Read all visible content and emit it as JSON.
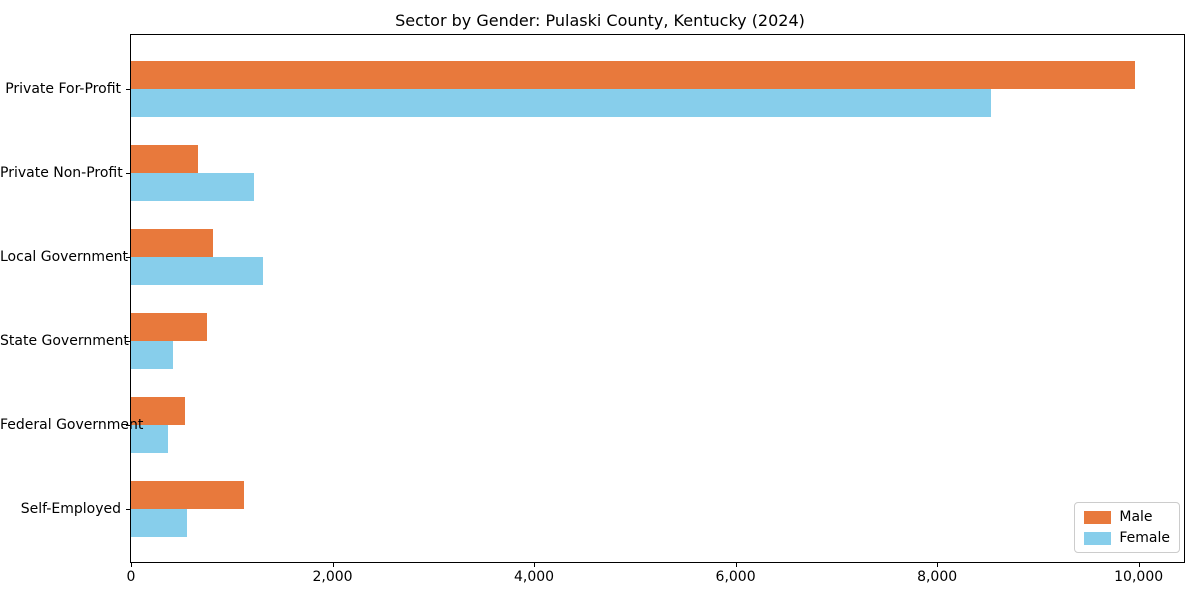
{
  "chart_data": {
    "type": "bar",
    "orientation": "horizontal",
    "title": "Sector by Gender: Pulaski County, Kentucky (2024)",
    "categories": [
      "Private For-Profit",
      "Private Non-Profit",
      "Local Government",
      "State Government",
      "Federal Government",
      "Self-Employed"
    ],
    "series": [
      {
        "name": "Male",
        "color": "#E8793C",
        "values": [
          9960,
          660,
          810,
          755,
          535,
          1120
        ]
      },
      {
        "name": "Female",
        "color": "#87CEEB",
        "values": [
          8530,
          1220,
          1310,
          415,
          370,
          560
        ]
      }
    ],
    "x_ticks": [
      0,
      2000,
      4000,
      6000,
      8000,
      10000
    ],
    "x_tick_labels": [
      "0",
      "2,000",
      "4,000",
      "6,000",
      "8,000",
      "10,000"
    ],
    "xlim": [
      0,
      10450
    ],
    "xlabel": "",
    "ylabel": "",
    "grid": false,
    "legend_position": "lower right"
  }
}
